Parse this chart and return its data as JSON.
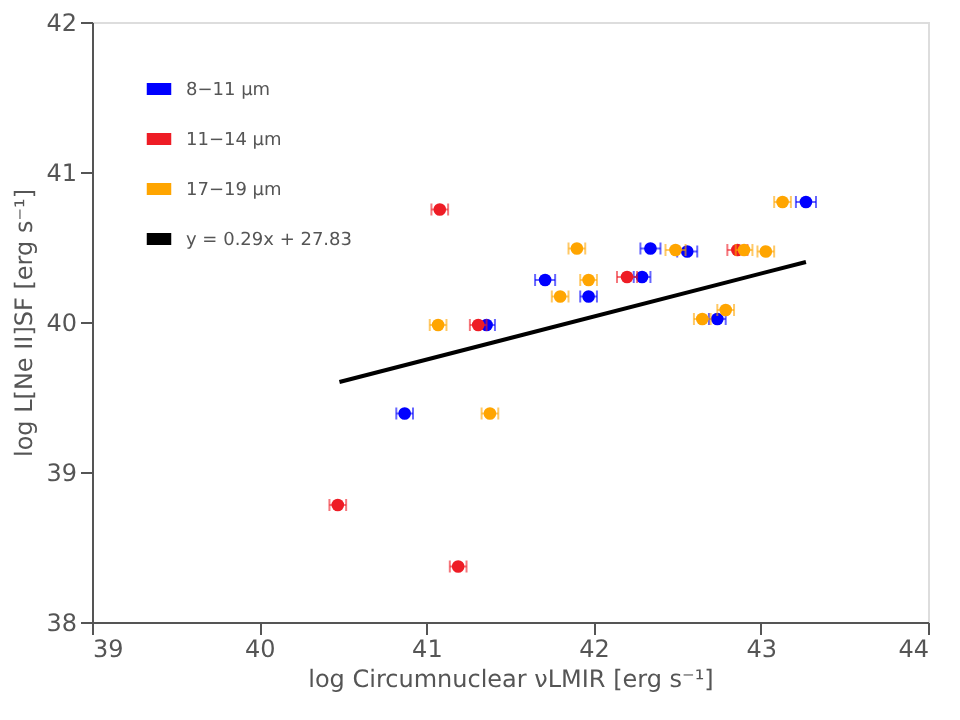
{
  "chart_data": {
    "type": "scatter",
    "xlabel": "log Circumnuclear νLMIR [erg s⁻¹]",
    "ylabel": "log L[Ne II]SF [erg s⁻¹]",
    "xlim": [
      39,
      44
    ],
    "ylim": [
      38,
      42
    ],
    "xticks": [
      39,
      40,
      41,
      42,
      43,
      44
    ],
    "yticks": [
      38,
      39,
      40,
      41,
      42
    ],
    "grid": false,
    "legend": "top left",
    "marker": "circle",
    "series": [
      {
        "name": "8−11 μm",
        "color": "#0000ff",
        "x": [
          43.27,
          42.34,
          42.56,
          41.71,
          41.97,
          42.29,
          41.36,
          40.87,
          42.74
        ],
        "values": [
          40.8,
          40.49,
          40.47,
          40.28,
          40.17,
          40.3,
          39.98,
          39.39,
          40.02
        ],
        "xerrors": [
          0.06,
          0.06,
          0.06,
          0.06,
          0.05,
          0.05,
          0.05,
          0.05,
          0.05
        ]
      },
      {
        "name": "11−14 μm",
        "color": "#ee1c25",
        "x": [
          41.08,
          42.86,
          42.2,
          41.31,
          40.47,
          41.19
        ],
        "values": [
          40.75,
          40.48,
          40.3,
          39.98,
          38.78,
          38.37
        ],
        "xerrors": [
          0.05,
          0.06,
          0.06,
          0.05,
          0.05,
          0.05
        ]
      },
      {
        "name": "17−19 μm",
        "color": "#ffa500",
        "x": [
          43.13,
          42.49,
          42.9,
          43.03,
          41.9,
          41.97,
          41.8,
          41.07,
          41.38,
          42.79,
          42.65
        ],
        "values": [
          40.8,
          40.48,
          40.48,
          40.47,
          40.49,
          40.28,
          40.17,
          39.98,
          39.39,
          40.08,
          40.02
        ],
        "xerrors": [
          0.05,
          0.06,
          0.05,
          0.05,
          0.05,
          0.05,
          0.05,
          0.05,
          0.05,
          0.05,
          0.05
        ]
      },
      {
        "name": "y = 0.29x + 27.83",
        "color": "#000000",
        "type": "line",
        "line_style": "solid",
        "marker": "none",
        "x": [
          40.48,
          43.27
        ],
        "values": [
          39.6,
          40.4
        ]
      }
    ]
  }
}
